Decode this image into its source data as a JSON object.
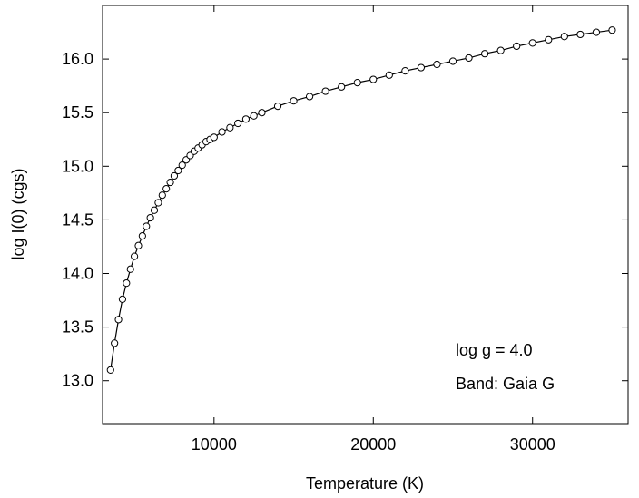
{
  "chart_data": {
    "type": "line",
    "title": "",
    "xlabel": "Temperature (K)",
    "ylabel": "log I(0) (cgs)",
    "xlim": [
      3000,
      36000
    ],
    "ylim": [
      12.6,
      16.5
    ],
    "xticks": [
      10000,
      20000,
      30000
    ],
    "yticks": [
      13.0,
      13.5,
      14.0,
      14.5,
      15.0,
      15.5,
      16.0
    ],
    "xtick_labels": [
      "10000",
      "20000",
      "30000"
    ],
    "ytick_labels": [
      "13.0",
      "13.5",
      "14.0",
      "14.5",
      "15.0",
      "15.5",
      "16.0"
    ],
    "grid": false,
    "legend": "none",
    "annotations": [
      "log g = 4.0",
      "Band: Gaia G"
    ],
    "line_color": "#000000",
    "marker": "open-circle",
    "series": [
      {
        "x": [
          3500,
          3750,
          4000,
          4250,
          4500,
          4750,
          5000,
          5250,
          5500,
          5750,
          6000,
          6250,
          6500,
          6750,
          7000,
          7250,
          7500,
          7750,
          8000,
          8250,
          8500,
          8750,
          9000,
          9250,
          9500,
          9750,
          10000,
          10500,
          11000,
          11500,
          12000,
          12500,
          13000,
          14000,
          15000,
          16000,
          17000,
          18000,
          19000,
          20000,
          21000,
          22000,
          23000,
          24000,
          25000,
          26000,
          27000,
          28000,
          29000,
          30000,
          31000,
          32000,
          33000,
          34000,
          35000
        ],
        "values": [
          13.1,
          13.35,
          13.57,
          13.76,
          13.91,
          14.04,
          14.16,
          14.26,
          14.35,
          14.44,
          14.52,
          14.59,
          14.66,
          14.73,
          14.79,
          14.85,
          14.91,
          14.96,
          15.01,
          15.06,
          15.1,
          15.14,
          15.17,
          15.2,
          15.23,
          15.25,
          15.27,
          15.32,
          15.36,
          15.4,
          15.44,
          15.47,
          15.5,
          15.56,
          15.61,
          15.65,
          15.7,
          15.74,
          15.78,
          15.81,
          15.85,
          15.89,
          15.92,
          15.95,
          15.98,
          16.01,
          16.05,
          16.08,
          16.12,
          16.15,
          16.18,
          16.21,
          16.23,
          16.25,
          16.27
        ]
      }
    ]
  }
}
